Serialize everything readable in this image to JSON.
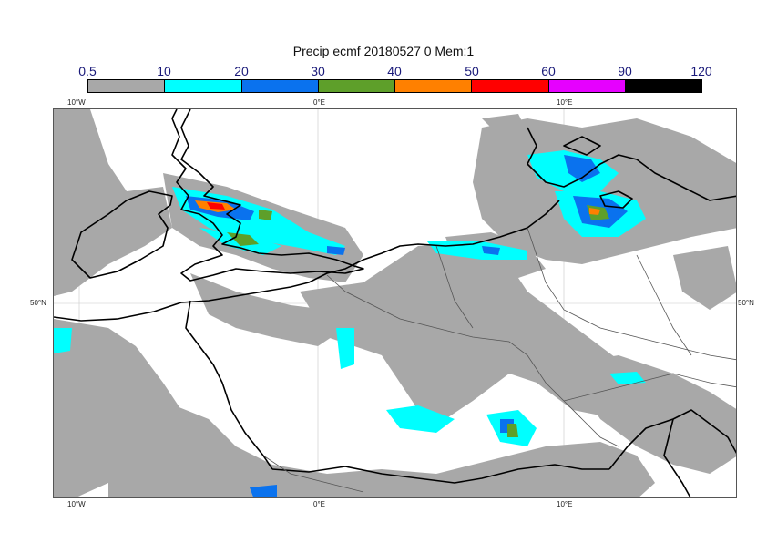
{
  "title": "Precip ecmf 20180527 0 Mem:1",
  "legend": {
    "levels": [
      "0.5",
      "10",
      "20",
      "30",
      "40",
      "50",
      "60",
      "90",
      "120"
    ],
    "colors": [
      "#a8a8a8",
      "#00ffff",
      "#0a72ee",
      "#5e9f2a",
      "#ff8000",
      "#ff0000",
      "#e600ff",
      "#000000"
    ]
  },
  "axes": {
    "top_ticks": [
      "10°W",
      "0°E",
      "10°E"
    ],
    "bottom_ticks": [
      "10°W",
      "0°E",
      "10°E"
    ],
    "left_ticks": [
      "50°N"
    ],
    "right_ticks": [
      "50°N"
    ]
  },
  "map": {
    "land_color": "#ffffff",
    "coastline_color": "#000000",
    "border_color": "#555555"
  }
}
